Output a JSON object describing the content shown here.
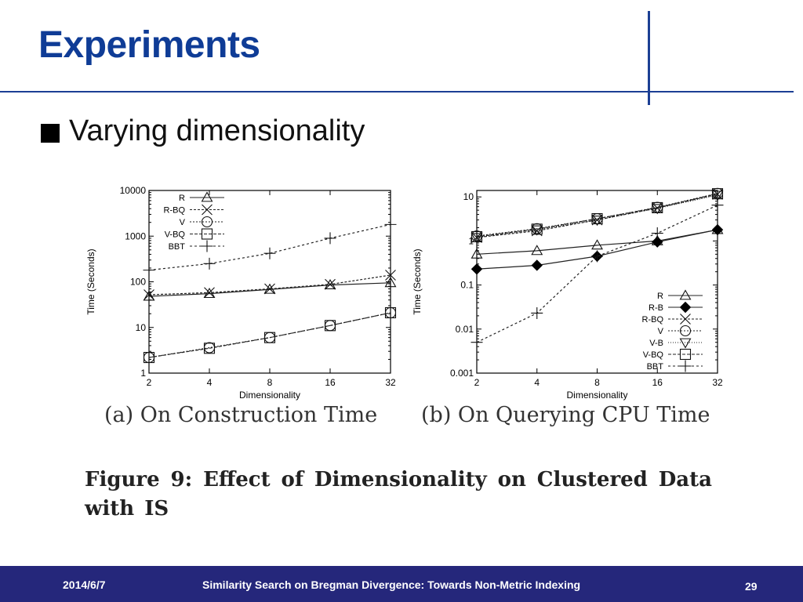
{
  "slide": {
    "title": "Experiments",
    "bullet": "Varying dimensionality",
    "figure_caption": "Figure 9:  Effect of Dimensionality on Clustered Data with IS"
  },
  "footer": {
    "date": "2014/6/7",
    "title": "Similarity Search on Bregman Divergence: Towards Non-Metric Indexing",
    "page": "29"
  },
  "colors": {
    "title": "#0f3c96",
    "rule": "#1c3f94",
    "footer_bg": "#25277b"
  },
  "chart_data": [
    {
      "type": "line",
      "caption": "(a) On Construction Time",
      "xlabel": "Dimensionality",
      "ylabel": "Time (Seconds)",
      "x": [
        "2",
        "4",
        "8",
        "16",
        "32"
      ],
      "yscale": "log",
      "ylim": [
        1,
        10000
      ],
      "yticks": [
        1,
        10,
        100,
        1000,
        10000
      ],
      "ytick_labels": [
        "1",
        "10",
        "100",
        "1000",
        "10000"
      ],
      "grid": false,
      "legend": "top-left",
      "series": [
        {
          "name": "R",
          "marker": "triangle",
          "values": [
            48,
            55,
            68,
            85,
            95
          ]
        },
        {
          "name": "R-BQ",
          "marker": "x",
          "values": [
            52,
            58,
            70,
            88,
            140
          ]
        },
        {
          "name": "V",
          "marker": "circle",
          "values": [
            2.2,
            3.6,
            6,
            11,
            21
          ]
        },
        {
          "name": "V-BQ",
          "marker": "square",
          "values": [
            2.2,
            3.5,
            6,
            11,
            21
          ]
        },
        {
          "name": "BBT",
          "marker": "plus",
          "values": [
            180,
            250,
            420,
            900,
            1800
          ]
        }
      ]
    },
    {
      "type": "line",
      "caption": "(b) On Querying CPU Time",
      "xlabel": "Dimensionality",
      "ylabel": "Time (Seconds)",
      "x": [
        "2",
        "4",
        "8",
        "16",
        "32"
      ],
      "yscale": "log",
      "ylim": [
        0.001,
        14
      ],
      "yticks": [
        0.001,
        0.01,
        0.1,
        1,
        10
      ],
      "ytick_labels": [
        "0.001",
        "0.01",
        "0.1",
        "1",
        "10"
      ],
      "grid": false,
      "legend": "bottom-right",
      "series": [
        {
          "name": "R",
          "marker": "triangle",
          "values": [
            0.5,
            0.6,
            0.8,
            1.0,
            1.8
          ]
        },
        {
          "name": "R-B",
          "marker": "diamond",
          "values": [
            0.23,
            0.28,
            0.45,
            0.95,
            1.8
          ]
        },
        {
          "name": "R-BQ",
          "marker": "x",
          "values": [
            1.2,
            1.7,
            3.0,
            5.6,
            11.5
          ]
        },
        {
          "name": "V",
          "marker": "circle",
          "values": [
            1.3,
            1.9,
            3.2,
            5.8,
            12
          ]
        },
        {
          "name": "V-B",
          "marker": "triangle-down",
          "values": [
            1.2,
            1.8,
            3.0,
            5.5,
            11
          ]
        },
        {
          "name": "V-BQ",
          "marker": "square",
          "values": [
            1.25,
            1.85,
            3.2,
            5.7,
            11.8
          ]
        },
        {
          "name": "BBT",
          "marker": "plus",
          "values": [
            0.005,
            0.023,
            0.45,
            1.5,
            6.5
          ]
        }
      ]
    }
  ]
}
